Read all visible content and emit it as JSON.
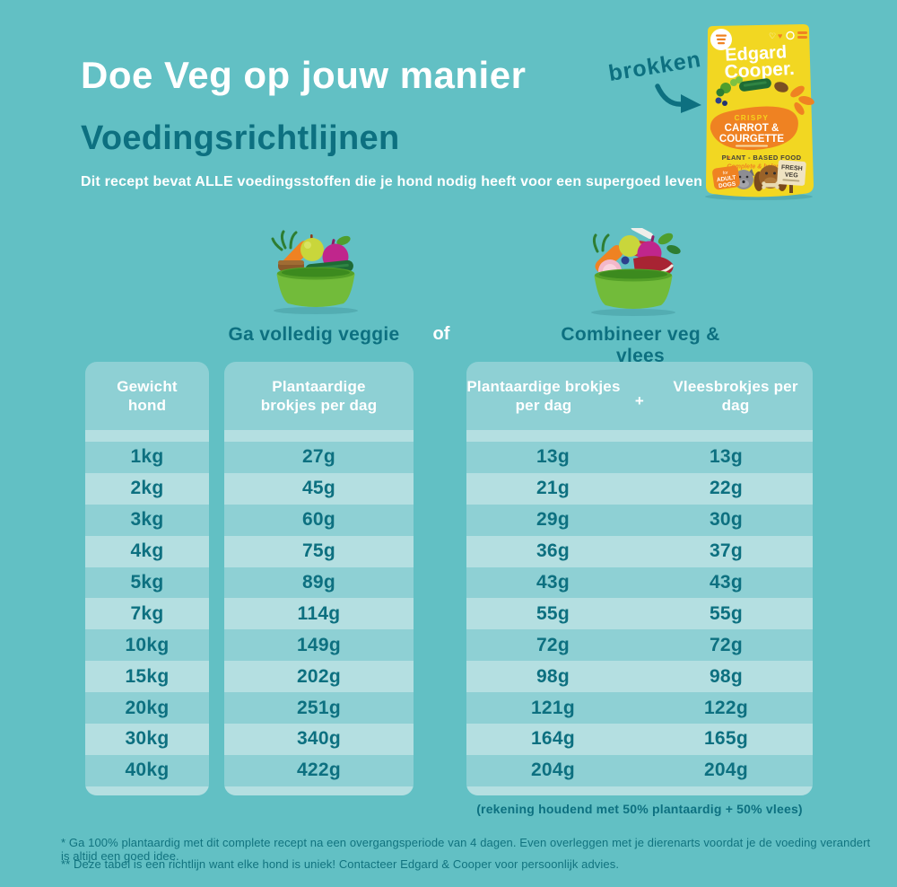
{
  "header": {
    "title": "Doe Veg op jouw manier",
    "subtitle": "Voedingsrichtlijnen",
    "intro": "Dit recept bevat ALLE voedingsstoffen die je hond nodig heeft voor een supergoed leven",
    "callout": "brokken"
  },
  "package": {
    "brand_line1": "Edgard",
    "brand_line2": "Cooper.",
    "flavor_tag": "CRISPY",
    "flavor_line1": "CARROT &",
    "flavor_line2": "COURGETTE",
    "plant_based": "PLANT - BASED FOOD",
    "complete": "Complete & balanced",
    "adult_for": "for",
    "adult_line1": "ADULT",
    "adult_line2": "DOGS",
    "fresh_line1": "FRESH",
    "fresh_line2": "VEG"
  },
  "options": {
    "veggie_label": "Ga volledig veggie",
    "or_label": "of",
    "combo_label": "Combineer veg & vlees"
  },
  "tables": {
    "weight_header": "Gewicht hond",
    "veggie_header": "Plantaardige brokjes per dag",
    "combo_plant_header": "Plantaardige brokjes per dag",
    "plus": "+",
    "combo_meat_header": "Vleesbrokjes per dag",
    "weights": [
      "1kg",
      "2kg",
      "3kg",
      "4kg",
      "5kg",
      "7kg",
      "10kg",
      "15kg",
      "20kg",
      "30kg",
      "40kg"
    ],
    "veggie_amounts": [
      "27g",
      "45g",
      "60g",
      "75g",
      "89g",
      "114g",
      "149g",
      "202g",
      "251g",
      "340g",
      "422g"
    ],
    "combo_plant": [
      "13g",
      "21g",
      "29g",
      "36g",
      "43g",
      "55g",
      "72g",
      "98g",
      "121g",
      "164g",
      "204g"
    ],
    "combo_meat": [
      "13g",
      "22g",
      "30g",
      "37g",
      "43g",
      "55g",
      "72g",
      "98g",
      "122g",
      "165g",
      "204g"
    ],
    "combo_note": "(rekening houdend met 50% plantaardig + 50% vlees)"
  },
  "footnotes": {
    "line1": "* Ga 100% plantaardig met dit complete recept na een overgangsperiode van 4 dagen. Even overleggen met je dierenarts voordat je de voeding verandert is altijd een goed idee.",
    "line2": "** Deze tabel is een richtlijn want elke hond is uniek! Contacteer Edgard & Cooper voor persoonlijk advies."
  },
  "colors": {
    "background": "#62c0c4",
    "panel": "#8ed0d4",
    "stripe": "#b4dfe1",
    "teal-dark": "#0d7080",
    "white": "#ffffff",
    "bag-yellow": "#f2d722",
    "orange": "#ef8222",
    "bowl-green": "#72bb3a"
  }
}
